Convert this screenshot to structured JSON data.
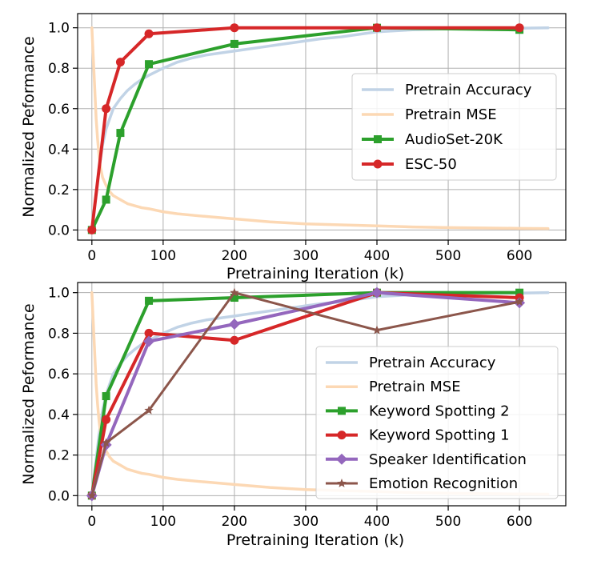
{
  "chart_data": [
    {
      "type": "line",
      "title": "",
      "xlabel": "Pretraining Iteration (k)",
      "ylabel": "Normalized Peformance",
      "xlim": [
        -20,
        665
      ],
      "ylim": [
        -0.05,
        1.07
      ],
      "xticks": [
        0,
        100,
        200,
        300,
        400,
        500,
        600
      ],
      "yticks": [
        0.0,
        0.2,
        0.4,
        0.6,
        0.8,
        1.0
      ],
      "grid": true,
      "legend_position": "center-right",
      "series": [
        {
          "name": "Pretrain Accuracy",
          "color": "#c1d3e6",
          "marker": "none",
          "width": 3.5,
          "x": [
            0,
            5,
            10,
            15,
            20,
            25,
            30,
            40,
            50,
            60,
            70,
            80,
            100,
            120,
            140,
            160,
            180,
            200,
            220,
            240,
            260,
            280,
            300,
            320,
            350,
            380,
            400,
            450,
            500,
            550,
            600,
            640
          ],
          "y": [
            0.0,
            0.15,
            0.3,
            0.42,
            0.5,
            0.55,
            0.6,
            0.65,
            0.69,
            0.72,
            0.745,
            0.765,
            0.8,
            0.83,
            0.85,
            0.865,
            0.875,
            0.885,
            0.895,
            0.905,
            0.915,
            0.925,
            0.935,
            0.945,
            0.955,
            0.97,
            0.98,
            0.99,
            0.995,
            0.997,
            0.998,
            1.0
          ]
        },
        {
          "name": "Pretrain MSE",
          "color": "#fcd8b4",
          "marker": "none",
          "width": 3.5,
          "x": [
            0,
            2,
            4,
            6,
            8,
            10,
            12,
            15,
            20,
            25,
            30,
            40,
            50,
            60,
            70,
            80,
            100,
            120,
            150,
            200,
            250,
            300,
            350,
            400,
            450,
            500,
            550,
            600,
            640
          ],
          "y": [
            1.0,
            0.85,
            0.7,
            0.55,
            0.45,
            0.37,
            0.31,
            0.26,
            0.22,
            0.19,
            0.17,
            0.15,
            0.13,
            0.12,
            0.11,
            0.105,
            0.09,
            0.08,
            0.07,
            0.055,
            0.04,
            0.03,
            0.025,
            0.02,
            0.015,
            0.012,
            0.01,
            0.008,
            0.007
          ]
        },
        {
          "name": "AudioSet-20K",
          "color": "#2ca02c",
          "marker": "square",
          "width": 4,
          "x": [
            0,
            20,
            40,
            80,
            200,
            400,
            600
          ],
          "y": [
            0.0,
            0.15,
            0.48,
            0.82,
            0.92,
            1.0,
            0.99
          ]
        },
        {
          "name": "ESC-50",
          "color": "#d62728",
          "marker": "circle",
          "width": 4,
          "x": [
            0,
            20,
            40,
            80,
            200,
            400,
            600
          ],
          "y": [
            0.0,
            0.6,
            0.83,
            0.97,
            1.0,
            1.0,
            1.0
          ]
        }
      ]
    },
    {
      "type": "line",
      "title": "",
      "xlabel": "Pretraining Iteration (k)",
      "ylabel": "Normalized Peformance",
      "xlim": [
        -20,
        665
      ],
      "ylim": [
        -0.05,
        1.05
      ],
      "xticks": [
        0,
        100,
        200,
        300,
        400,
        500,
        600
      ],
      "yticks": [
        0.0,
        0.2,
        0.4,
        0.6,
        0.8,
        1.0
      ],
      "grid": true,
      "legend_position": "lower-right",
      "series": [
        {
          "name": "Pretrain Accuracy",
          "color": "#c1d3e6",
          "marker": "none",
          "width": 3.5,
          "x": [
            0,
            5,
            10,
            15,
            20,
            25,
            30,
            40,
            50,
            60,
            70,
            80,
            100,
            120,
            140,
            160,
            180,
            200,
            220,
            240,
            260,
            280,
            300,
            320,
            350,
            380,
            400,
            450,
            500,
            550,
            600,
            640
          ],
          "y": [
            0.0,
            0.15,
            0.3,
            0.42,
            0.5,
            0.55,
            0.6,
            0.65,
            0.69,
            0.72,
            0.745,
            0.765,
            0.8,
            0.83,
            0.85,
            0.865,
            0.875,
            0.885,
            0.895,
            0.905,
            0.915,
            0.925,
            0.935,
            0.945,
            0.955,
            0.97,
            0.98,
            0.99,
            0.995,
            0.997,
            0.998,
            1.0
          ]
        },
        {
          "name": "Pretrain MSE",
          "color": "#fcd8b4",
          "marker": "none",
          "width": 3.5,
          "x": [
            0,
            2,
            4,
            6,
            8,
            10,
            12,
            15,
            20,
            25,
            30,
            40,
            50,
            60,
            70,
            80,
            100,
            120,
            150,
            200,
            250,
            300,
            350,
            400,
            450,
            500,
            550,
            600,
            640
          ],
          "y": [
            1.0,
            0.85,
            0.7,
            0.55,
            0.45,
            0.37,
            0.31,
            0.26,
            0.22,
            0.19,
            0.17,
            0.15,
            0.13,
            0.12,
            0.11,
            0.105,
            0.09,
            0.08,
            0.07,
            0.055,
            0.04,
            0.03,
            0.025,
            0.02,
            0.015,
            0.012,
            0.01,
            0.008,
            0.007
          ]
        },
        {
          "name": "Keyword Spotting 2",
          "color": "#2ca02c",
          "marker": "square",
          "width": 4,
          "x": [
            0,
            20,
            80,
            200,
            400,
            600
          ],
          "y": [
            0.0,
            0.49,
            0.96,
            0.975,
            1.0,
            1.0
          ]
        },
        {
          "name": "Keyword Spotting 1",
          "color": "#d62728",
          "marker": "circle",
          "width": 4,
          "x": [
            0,
            20,
            80,
            200,
            400,
            600
          ],
          "y": [
            0.0,
            0.375,
            0.8,
            0.765,
            1.0,
            0.975
          ]
        },
        {
          "name": "Speaker Identification",
          "color": "#9467bd",
          "marker": "diamond",
          "width": 4,
          "x": [
            0,
            20,
            80,
            200,
            400,
            600
          ],
          "y": [
            0.0,
            0.25,
            0.76,
            0.845,
            1.0,
            0.95
          ]
        },
        {
          "name": "Emotion Recognition",
          "color": "#8c564b",
          "marker": "star",
          "width": 3,
          "x": [
            0,
            20,
            80,
            200,
            400,
            600
          ],
          "y": [
            0.0,
            0.26,
            0.42,
            1.0,
            0.815,
            0.955
          ]
        }
      ]
    }
  ]
}
